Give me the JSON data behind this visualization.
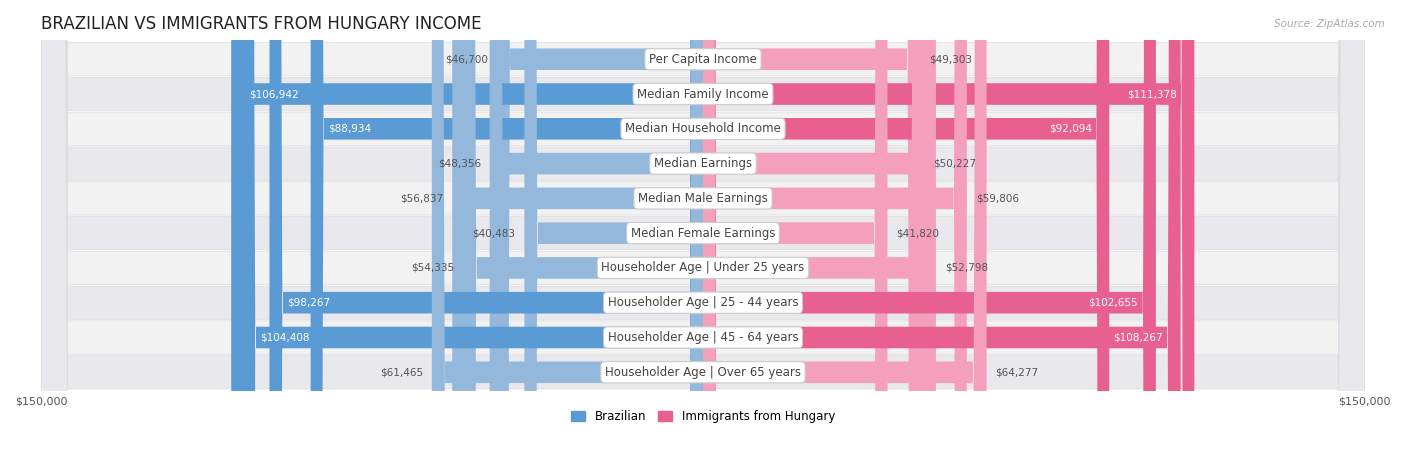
{
  "title": "BRAZILIAN VS IMMIGRANTS FROM HUNGARY INCOME",
  "source": "Source: ZipAtlas.com",
  "categories": [
    "Per Capita Income",
    "Median Family Income",
    "Median Household Income",
    "Median Earnings",
    "Median Male Earnings",
    "Median Female Earnings",
    "Householder Age | Under 25 years",
    "Householder Age | 25 - 44 years",
    "Householder Age | 45 - 64 years",
    "Householder Age | Over 65 years"
  ],
  "brazilian_values": [
    46700,
    106942,
    88934,
    48356,
    56837,
    40483,
    54335,
    98267,
    104408,
    61465
  ],
  "hungary_values": [
    49303,
    111378,
    92094,
    50227,
    59806,
    41820,
    52798,
    102655,
    108267,
    64277
  ],
  "max_value": 150000,
  "blue_color": "#93b8dc",
  "pink_color": "#f4a0bc",
  "blue_dark_color": "#5b9bd5",
  "pink_dark_color": "#e86090",
  "bar_height": 0.62,
  "title_fontsize": 12,
  "label_fontsize": 8.5,
  "value_fontsize": 7.5,
  "axis_label_fontsize": 8
}
